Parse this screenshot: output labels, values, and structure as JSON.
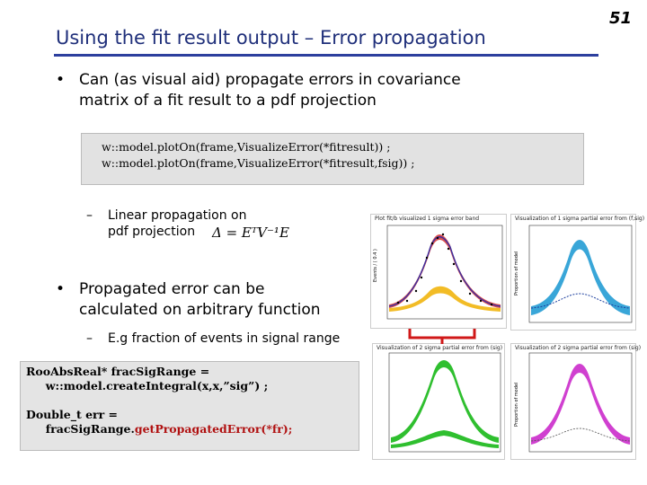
{
  "slide": {
    "title": "Using the fit result output – Error propagation",
    "page_number": "51"
  },
  "bullets": [
    {
      "line1": "Can (as visual aid) propagate errors in covariance",
      "line2": "matrix of a fit result to a pdf projection"
    },
    {
      "line1": "Propagated error can be",
      "line2": "calculated on arbitrary function"
    }
  ],
  "code1": {
    "line1": "w::model.plotOn(frame,VisualizeError(*fitresult)) ;",
    "line2": "w::model.plotOn(frame,VisualizeError(*fitresult,fsig)) ;"
  },
  "sub_bullets": {
    "linear_line1": "Linear propagation on",
    "linear_line2": "pdf projection",
    "formula": "Δ = EᵀV⁻¹E",
    "fraction": "E.g fraction of events in signal range"
  },
  "code2": {
    "line1": "RooAbsReal* fracSigRange =",
    "line2": "     w::model.createIntegral(x,x,”sig”) ;",
    "blank": "",
    "line4_prefix": "Double_t err = ",
    "line5_indent": "     fracSigRange.",
    "line5_call": "getPropagatedError(*fr);"
  },
  "plots": {
    "main_title": "Plot fit/b visualized 1 sigma error band",
    "main_ylabel": "Events / ( 0.4 )",
    "tr_title": "Visualization of 1 sigma partial error from (f,sig)",
    "bl_title": "Visualization of 2 sigma partial error from (sig)",
    "br_title": "Visualization of 2 sigma partial error from (sig)",
    "ylabel_fraction": "Proportion of model"
  },
  "colors": {
    "title": "#1f2f7a",
    "rule": "#2c3f9e",
    "code_red": "#b01010",
    "blue_band": "#39a6d8",
    "green_band": "#2fbf2f",
    "magenta_band": "#d040d0",
    "yellow_band": "#f0b000",
    "bracket": "#d01818"
  }
}
